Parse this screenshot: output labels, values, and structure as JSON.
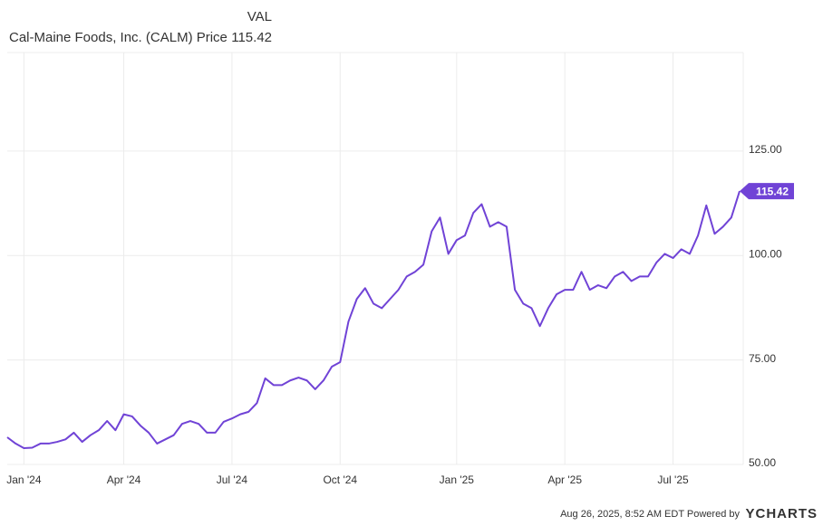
{
  "chart_data": {
    "type": "line",
    "legend_header": "VAL",
    "categories": [
      null,
      null,
      "Jan '24",
      null,
      null,
      null,
      null,
      null,
      null,
      null,
      null,
      null,
      null,
      null,
      "Apr '24",
      null,
      null,
      null,
      null,
      null,
      null,
      null,
      null,
      null,
      null,
      null,
      null,
      "Jul '24",
      null,
      null,
      null,
      null,
      null,
      null,
      null,
      null,
      null,
      null,
      null,
      null,
      "Oct '24",
      null,
      null,
      null,
      null,
      null,
      null,
      null,
      null,
      null,
      null,
      null,
      null,
      null,
      "Jan '25",
      null,
      null,
      null,
      null,
      null,
      null,
      null,
      null,
      null,
      null,
      null,
      null,
      "Apr '25",
      null,
      null,
      null,
      null,
      null,
      null,
      null,
      null,
      null,
      null,
      null,
      null,
      "Jul '25",
      null,
      null,
      null,
      null,
      null,
      null,
      null,
      null
    ],
    "series": [
      {
        "name": "Cal-Maine Foods, Inc. (CALM) Price",
        "color": "#7043d6",
        "values": [
          56.5,
          55,
          53.9,
          54,
          55,
          55,
          55.4,
          56,
          57.6,
          55.4,
          57,
          58.2,
          60.4,
          58.2,
          62,
          61.5,
          59.3,
          57.6,
          55,
          56,
          57,
          59.7,
          60.4,
          59.7,
          57.6,
          57.6,
          60.2,
          61,
          62,
          62.6,
          64.7,
          70.6,
          69,
          69,
          70.1,
          70.8,
          70.1,
          68,
          70.1,
          73.4,
          74.5,
          84.2,
          89.6,
          92.2,
          88.5,
          87.4,
          89.6,
          91.8,
          95,
          96.1,
          97.8,
          105.8,
          109.1,
          100.4,
          103.7,
          104.8,
          110.2,
          112.3,
          106.9,
          108,
          106.9,
          91.8,
          88.5,
          87.4,
          83.1,
          87.4,
          90.7,
          91.8,
          91.8,
          96.1,
          91.8,
          92.9,
          92.2,
          95,
          96.1,
          93.9,
          95,
          95,
          98.3,
          100.4,
          99.4,
          101.5,
          100.4,
          104.8,
          112,
          105.2,
          106.9,
          109.1,
          115.42
        ]
      }
    ],
    "ylim": [
      50,
      148.6
    ],
    "yticks": [
      {
        "value": 50,
        "label": "50.00"
      },
      {
        "value": 75,
        "label": "75.00"
      },
      {
        "value": 100,
        "label": "100.00"
      },
      {
        "value": 125,
        "label": "125.00"
      }
    ],
    "grid": true,
    "source": "Aug 26, 2025, 8:52 AM EDT Powered by",
    "brand": "YCHARTS"
  }
}
